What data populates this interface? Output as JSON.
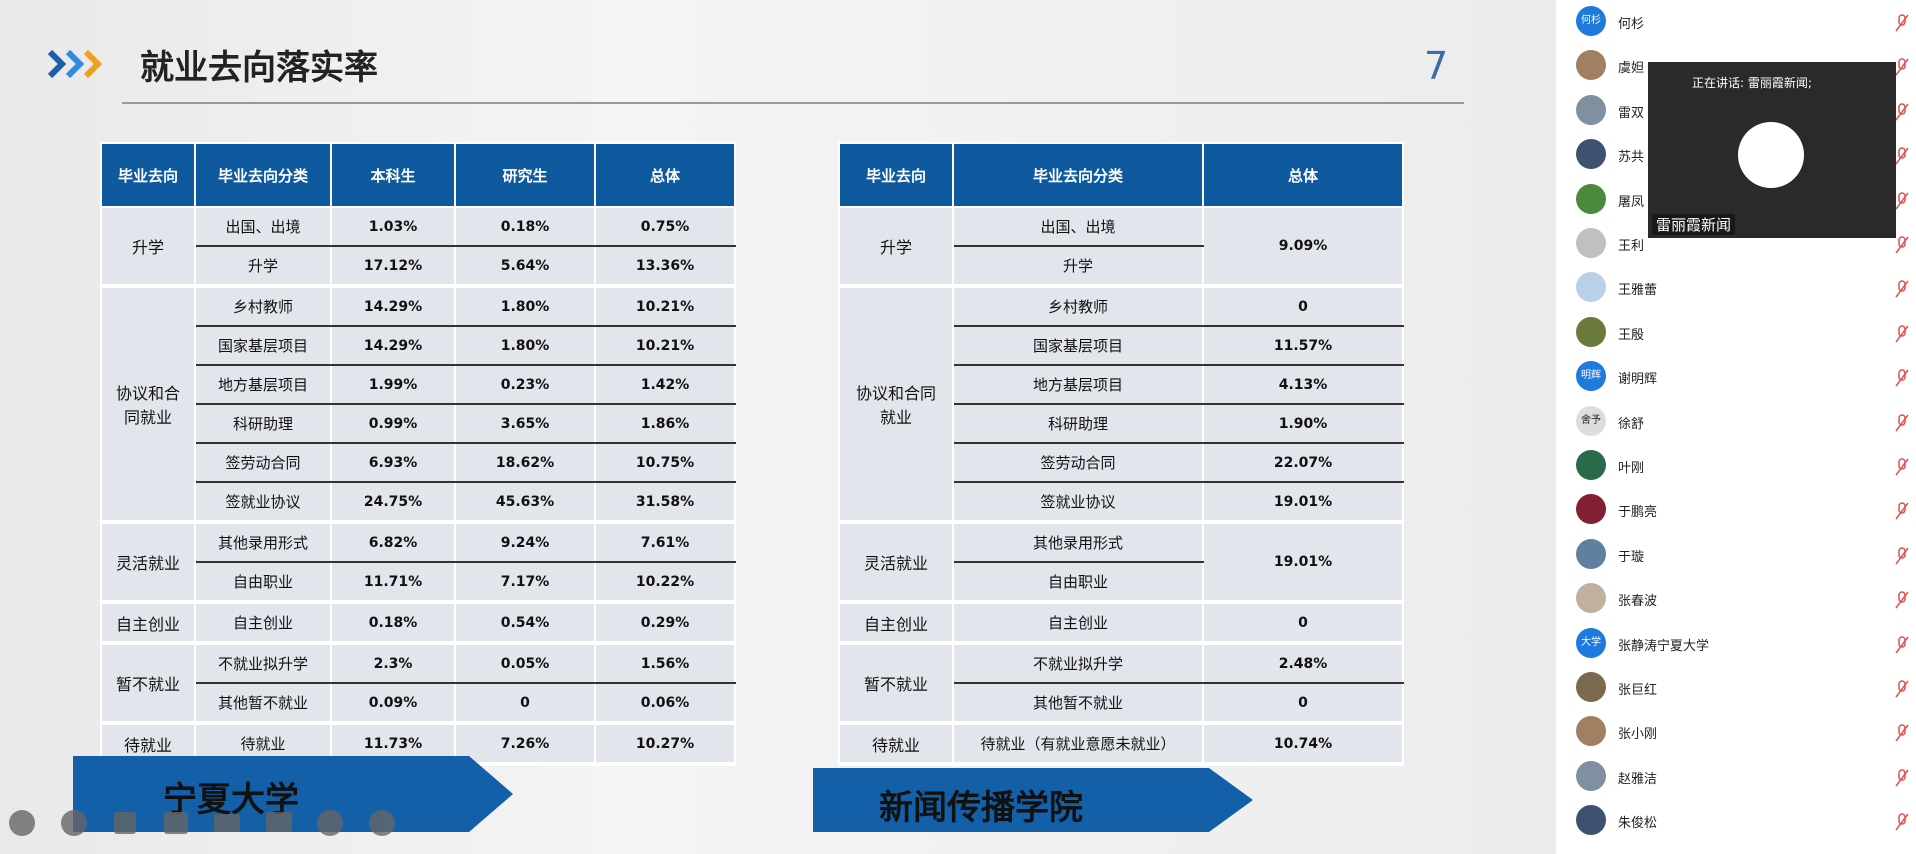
{
  "slide": {
    "title": "就业去向落实率",
    "page_number": "7",
    "left_table": {
      "header": [
        "毕业去向",
        "毕业去向分类",
        "本科生",
        "研究生",
        "总体"
      ],
      "groups": [
        {
          "category": "升学",
          "rows": [
            [
              "出国、出境",
              "1.03%",
              "0.18%",
              "0.75%"
            ],
            [
              "升学",
              "17.12%",
              "5.64%",
              "13.36%"
            ]
          ]
        },
        {
          "category": "协议和合同就业",
          "rows": [
            [
              "乡村教师",
              "14.29%",
              "1.80%",
              "10.21%"
            ],
            [
              "国家基层项目",
              "14.29%",
              "1.80%",
              "10.21%"
            ],
            [
              "地方基层项目",
              "1.99%",
              "0.23%",
              "1.42%"
            ],
            [
              "科研助理",
              "0.99%",
              "3.65%",
              "1.86%"
            ],
            [
              "签劳动合同",
              "6.93%",
              "18.62%",
              "10.75%"
            ],
            [
              "签就业协议",
              "24.75%",
              "45.63%",
              "31.58%"
            ]
          ]
        },
        {
          "category": "灵活就业",
          "rows": [
            [
              "其他录用形式",
              "6.82%",
              "9.24%",
              "7.61%"
            ],
            [
              "自由职业",
              "11.71%",
              "7.17%",
              "10.22%"
            ]
          ]
        },
        {
          "category": "自主创业",
          "rows": [
            [
              "自主创业",
              "0.18%",
              "0.54%",
              "0.29%"
            ]
          ]
        },
        {
          "category": "暂不就业",
          "rows": [
            [
              "不就业拟升学",
              "2.3%",
              "0.05%",
              "1.56%"
            ],
            [
              "其他暂不就业",
              "0.09%",
              "0",
              "0.06%"
            ]
          ]
        },
        {
          "category": "待就业",
          "rows": [
            [
              "待就业",
              "11.73%",
              "7.26%",
              "10.27%"
            ]
          ]
        }
      ],
      "banner": "宁夏大学"
    },
    "right_table": {
      "header": [
        "毕业去向",
        "毕业去向分类",
        "总体"
      ],
      "groups": [
        {
          "category": "升学",
          "items": [
            "出国、出境",
            "升学"
          ],
          "totals": [
            "9.09%"
          ]
        },
        {
          "category": "协议和合同就业",
          "items": [
            "乡村教师",
            "国家基层项目",
            "地方基层项目",
            "科研助理",
            "签劳动合同",
            "签就业协议"
          ],
          "totals": [
            "0",
            "11.57%",
            "4.13%",
            "1.90%",
            "22.07%",
            "19.01%"
          ]
        },
        {
          "category": "灵活就业",
          "items": [
            "其他录用形式",
            "自由职业"
          ],
          "totals": [
            "19.01%"
          ]
        },
        {
          "category": "自主创业",
          "items": [
            "自主创业"
          ],
          "totals": [
            "0"
          ]
        },
        {
          "category": "暂不就业",
          "items": [
            "不就业拟升学",
            "其他暂不就业"
          ],
          "totals": [
            "2.48%",
            "0"
          ]
        },
        {
          "category": "待就业",
          "items": [
            "待就业（有就业意愿未就业）"
          ],
          "totals": [
            "10.74%"
          ]
        }
      ],
      "banner": "新闻传播学院"
    }
  },
  "speaker_window": {
    "status": "正在讲话: 雷丽霞新闻;",
    "name": "雷丽霞新闻"
  },
  "participants": [
    {
      "name": "何杉",
      "avatar_text": "何杉"
    },
    {
      "name": "虞妲"
    },
    {
      "name": "雷双"
    },
    {
      "name": "苏共"
    },
    {
      "name": "屠凤"
    },
    {
      "name": "王利"
    },
    {
      "name": "王雅蕾"
    },
    {
      "name": "王殷"
    },
    {
      "name": "谢明辉",
      "avatar_text": "明辉"
    },
    {
      "name": "徐舒",
      "avatar_text": "舍予"
    },
    {
      "name": "叶刚"
    },
    {
      "name": "于鹏亮"
    },
    {
      "name": "于璇"
    },
    {
      "name": "张春波"
    },
    {
      "name": "张静涛宁夏大学",
      "avatar_text": "大学"
    },
    {
      "name": "张巨红"
    },
    {
      "name": "张小刚"
    },
    {
      "name": "赵雅洁"
    },
    {
      "name": "朱俊松"
    }
  ]
}
